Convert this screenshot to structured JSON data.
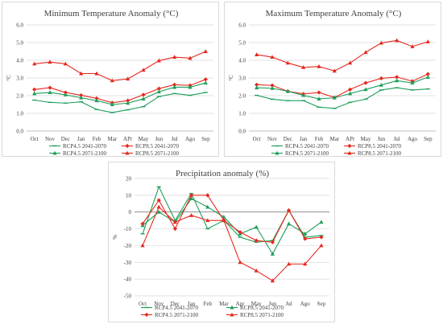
{
  "colors": {
    "green": "#1e9e5a",
    "red": "#e6281e",
    "grid": "#d9d9d9",
    "zero": "#7f7f7f",
    "text": "#404040"
  },
  "chart_data": [
    {
      "type": "line",
      "title": "Minimum Temperature Anomaly (°C)",
      "ylabel": "°C",
      "categories": [
        "Oct",
        "Nov",
        "Dec",
        "Jan",
        "Feb",
        "Mar",
        "APr",
        "May",
        "Jun",
        "Jul",
        "Ago",
        "Sep"
      ],
      "ylim": [
        0,
        6
      ],
      "yticks": [
        "0.0",
        "1.0",
        "2.0",
        "3.0",
        "4.0",
        "5.0",
        "6.0"
      ],
      "grid": true,
      "legend": "bottom",
      "series": [
        {
          "name": "RCP4.5 2041-2070",
          "color": "#1e9e5a",
          "marker": "dash",
          "values": [
            1.75,
            1.62,
            1.58,
            1.65,
            1.22,
            1.05,
            1.2,
            1.38,
            1.95,
            2.12,
            2.02,
            2.18
          ]
        },
        {
          "name": "RCP8.5 2041-2070",
          "color": "#e6281e",
          "marker": "diamond",
          "values": [
            2.35,
            2.45,
            2.18,
            2.02,
            1.85,
            1.6,
            1.72,
            2.05,
            2.4,
            2.62,
            2.58,
            2.92
          ]
        },
        {
          "name": "RCP4.5 2071-2100",
          "color": "#1e9e5a",
          "marker": "triangle",
          "values": [
            2.12,
            2.18,
            2.05,
            1.88,
            1.72,
            1.5,
            1.58,
            1.82,
            2.22,
            2.48,
            2.48,
            2.72
          ]
        },
        {
          "name": "RCP8.5 2071-2100",
          "color": "#e6281e",
          "marker": "triangle",
          "values": [
            3.8,
            3.9,
            3.8,
            3.25,
            3.25,
            2.85,
            2.95,
            3.45,
            3.98,
            4.18,
            4.12,
            4.5
          ]
        }
      ]
    },
    {
      "type": "line",
      "title": "Maximum Temperature Anomaly (°C)",
      "ylabel": "°C",
      "categories": [
        "Oct",
        "Nov",
        "Dec",
        "Jan",
        "Feb",
        "Mar",
        "APr",
        "May",
        "Jun",
        "Jul",
        "Ago",
        "Sep"
      ],
      "ylim": [
        0,
        6
      ],
      "yticks": [
        "0.0",
        "1.0",
        "2.0",
        "3.0",
        "4.0",
        "5.0",
        "6.0"
      ],
      "grid": true,
      "legend": "bottom",
      "series": [
        {
          "name": "RCP4.5 2041-2070",
          "color": "#1e9e5a",
          "marker": "dash",
          "values": [
            2.02,
            1.8,
            1.72,
            1.72,
            1.35,
            1.28,
            1.62,
            1.8,
            2.32,
            2.45,
            2.32,
            2.38
          ]
        },
        {
          "name": "RCP8.5 2041-2070",
          "color": "#e6281e",
          "marker": "diamond",
          "values": [
            2.62,
            2.58,
            2.25,
            2.1,
            2.18,
            1.9,
            2.35,
            2.72,
            2.98,
            3.05,
            2.82,
            3.22
          ]
        },
        {
          "name": "RCP4.5 2071-2100",
          "color": "#1e9e5a",
          "marker": "triangle",
          "values": [
            2.45,
            2.42,
            2.25,
            2.02,
            1.82,
            1.88,
            2.12,
            2.35,
            2.6,
            2.85,
            2.72,
            3.05
          ]
        },
        {
          "name": "RCP8.5 2071-2100",
          "color": "#e6281e",
          "marker": "triangle",
          "values": [
            4.32,
            4.18,
            3.85,
            3.6,
            3.65,
            3.4,
            3.85,
            4.45,
            4.98,
            5.12,
            4.78,
            5.05
          ]
        }
      ]
    },
    {
      "type": "line",
      "title": "Precipitation anomaly (%)",
      "ylabel": "%",
      "categories": [
        "Oct",
        "Nov",
        "Dec",
        "Jan",
        "Feb",
        "Mar",
        "Apr",
        "May",
        "Jun",
        "Jul",
        "Ago",
        "Sep"
      ],
      "ylim": [
        -50,
        20
      ],
      "yticks": [
        "-50",
        "-40",
        "-30",
        "-20",
        "-10",
        "0",
        "10",
        "20"
      ],
      "grid": true,
      "legend": "bottom",
      "series": [
        {
          "name": "RCP4.5 2041-2070",
          "color": "#1e9e5a",
          "marker": "dash",
          "values": [
            -13,
            15,
            -5,
            11,
            -10,
            -5,
            -15,
            -18,
            -17,
            1,
            -15,
            -14
          ]
        },
        {
          "name": "RCP8.5 2041-2070",
          "color": "#1e9e5a",
          "marker": "triangle",
          "values": [
            -8,
            0,
            -6,
            8,
            3,
            -3,
            -13,
            -9,
            -25,
            -7,
            -13,
            -6
          ]
        },
        {
          "name": "RCP4.5 2071-2100",
          "color": "#e6281e",
          "marker": "diamond",
          "values": [
            -7,
            7,
            -10,
            10,
            10,
            -5,
            -12,
            -17,
            -18,
            1,
            -16,
            -15
          ]
        },
        {
          "name": "RCP8.5 2071-2100",
          "color": "#e6281e",
          "marker": "triangle",
          "values": [
            -20,
            3,
            -6,
            -2,
            -5,
            -5,
            -30,
            -35,
            -41,
            -31,
            -31,
            -20
          ]
        }
      ]
    }
  ]
}
